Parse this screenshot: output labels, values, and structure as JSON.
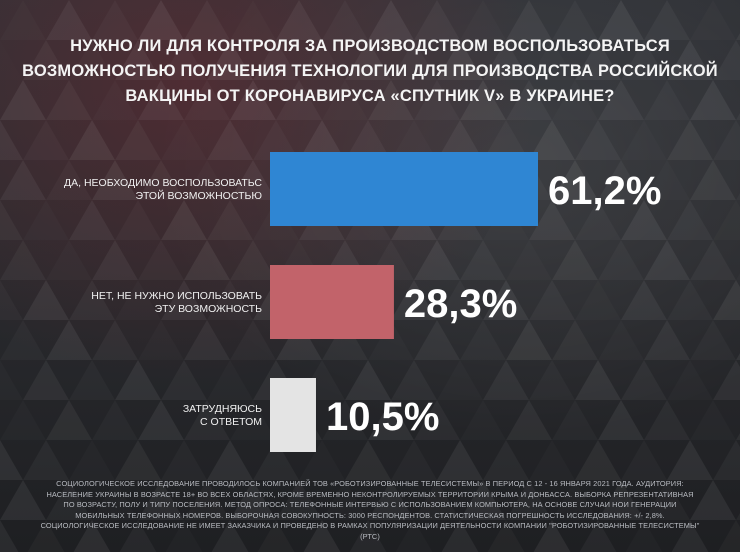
{
  "title": "НУЖНО ЛИ ДЛЯ КОНТРОЛЯ ЗА ПРОИЗВОДСТВОМ ВОСПОЛЬЗОВАТЬСЯ\nВОЗМОЖНОСТЬЮ ПОЛУЧЕНИЯ ТЕХНОЛОГИИ ДЛЯ ПРОИЗВОДСТВА РОССИЙСКОЙ\nВАКЦИНЫ ОТ КОРОНАВИРУСА «СПУТНИК V» В УКРАИНЕ?",
  "footnote": "СОЦИОЛОГИЧЕСКОЕ ИССЛЕДОВАНИЕ ПРОВОДИЛОСЬ КОМПАНИЕЙ ТОВ «РОБОТИЗИРОВАННЫЕ ТЕЛЕСИСТЕМЫ» В ПЕРИОД С 12 - 16 ЯНВАРЯ 2021 ГОДА. АУДИТОРИЯ: НАСЕЛЕНИЕ УКРАИНЫ В ВОЗРАСТЕ 18+ ВО ВСЕХ ОБЛАСТЯХ, КРОМЕ ВРЕМЕННО НЕКОНТРОЛИРУЕМЫХ ТЕРРИТОРИИ КРЫМА И ДОНБАССА. ВЫБОРКА РЕПРЕЗЕНТАТИВНАЯ ПО ВОЗРАСТУ, ПОЛУ И ТИПУ ПОСЕЛЕНИЯ. МЕТОД ОПРОСА: ТЕЛЕФОННЫЕ ИНТЕРВЬЮ С ИСПОЛЬЗОВАНИЕМ КОМПЬЮТЕРА, НА ОСНОВЕ СЛУЧАИ НОИ ГЕНЕРАЦИИ МОБИЛЬНЫХ ТЕЛЕФОННЫХ НОМЕРОВ. ВЫБОРОЧНАЯ СОВОКУПНОСТЬ: 3000 РЕСПОНДЕНТОВ. СТАТИСТИЧЕСКАЯ ПОГРЕШНОСТЬ ИССЛЕДОВАНИЯ: +/- 2,8%. СОЦИОЛОГИЧЕСКОЕ ИССЛЕДОВАНИЕ НЕ ИМЕЕТ ЗАКАЗЧИКА И ПРОВЕДЕНО В РАМКАХ ПОПУЛЯРИЗАЦИИ ДЕЯТЕЛЬНОСТИ КОМПАНИИ \"РОБОТИЗИРОВАННЫЕ ТЕЛЕСИСТЕМЫ\" (РТС)",
  "chart_data": {
    "type": "bar",
    "orientation": "horizontal",
    "categories": [
      [
        "ДА, НЕОБХОДИМО ВОСПОЛЬЗОВАТЬС",
        "ЭТОЙ ВОЗМОЖНОСТЬЮ"
      ],
      [
        "НЕТ, НЕ НУЖНО ИСПОЛЬЗОВАТЬ",
        "ЭТУ ВОЗМОЖНОСТЬ"
      ],
      [
        "ЗАТРУДНЯЮСЬ",
        "С ОТВЕТОМ"
      ]
    ],
    "values": [
      61.2,
      28.3,
      10.5
    ],
    "value_labels": [
      "61,2%",
      "28,3%",
      "10,5%"
    ],
    "colors": [
      "#2f86d3",
      "#c2636a",
      "#e4e4e4"
    ],
    "unit": "%",
    "xlim": [
      0,
      61.2
    ],
    "grid": false,
    "legend": "none"
  }
}
